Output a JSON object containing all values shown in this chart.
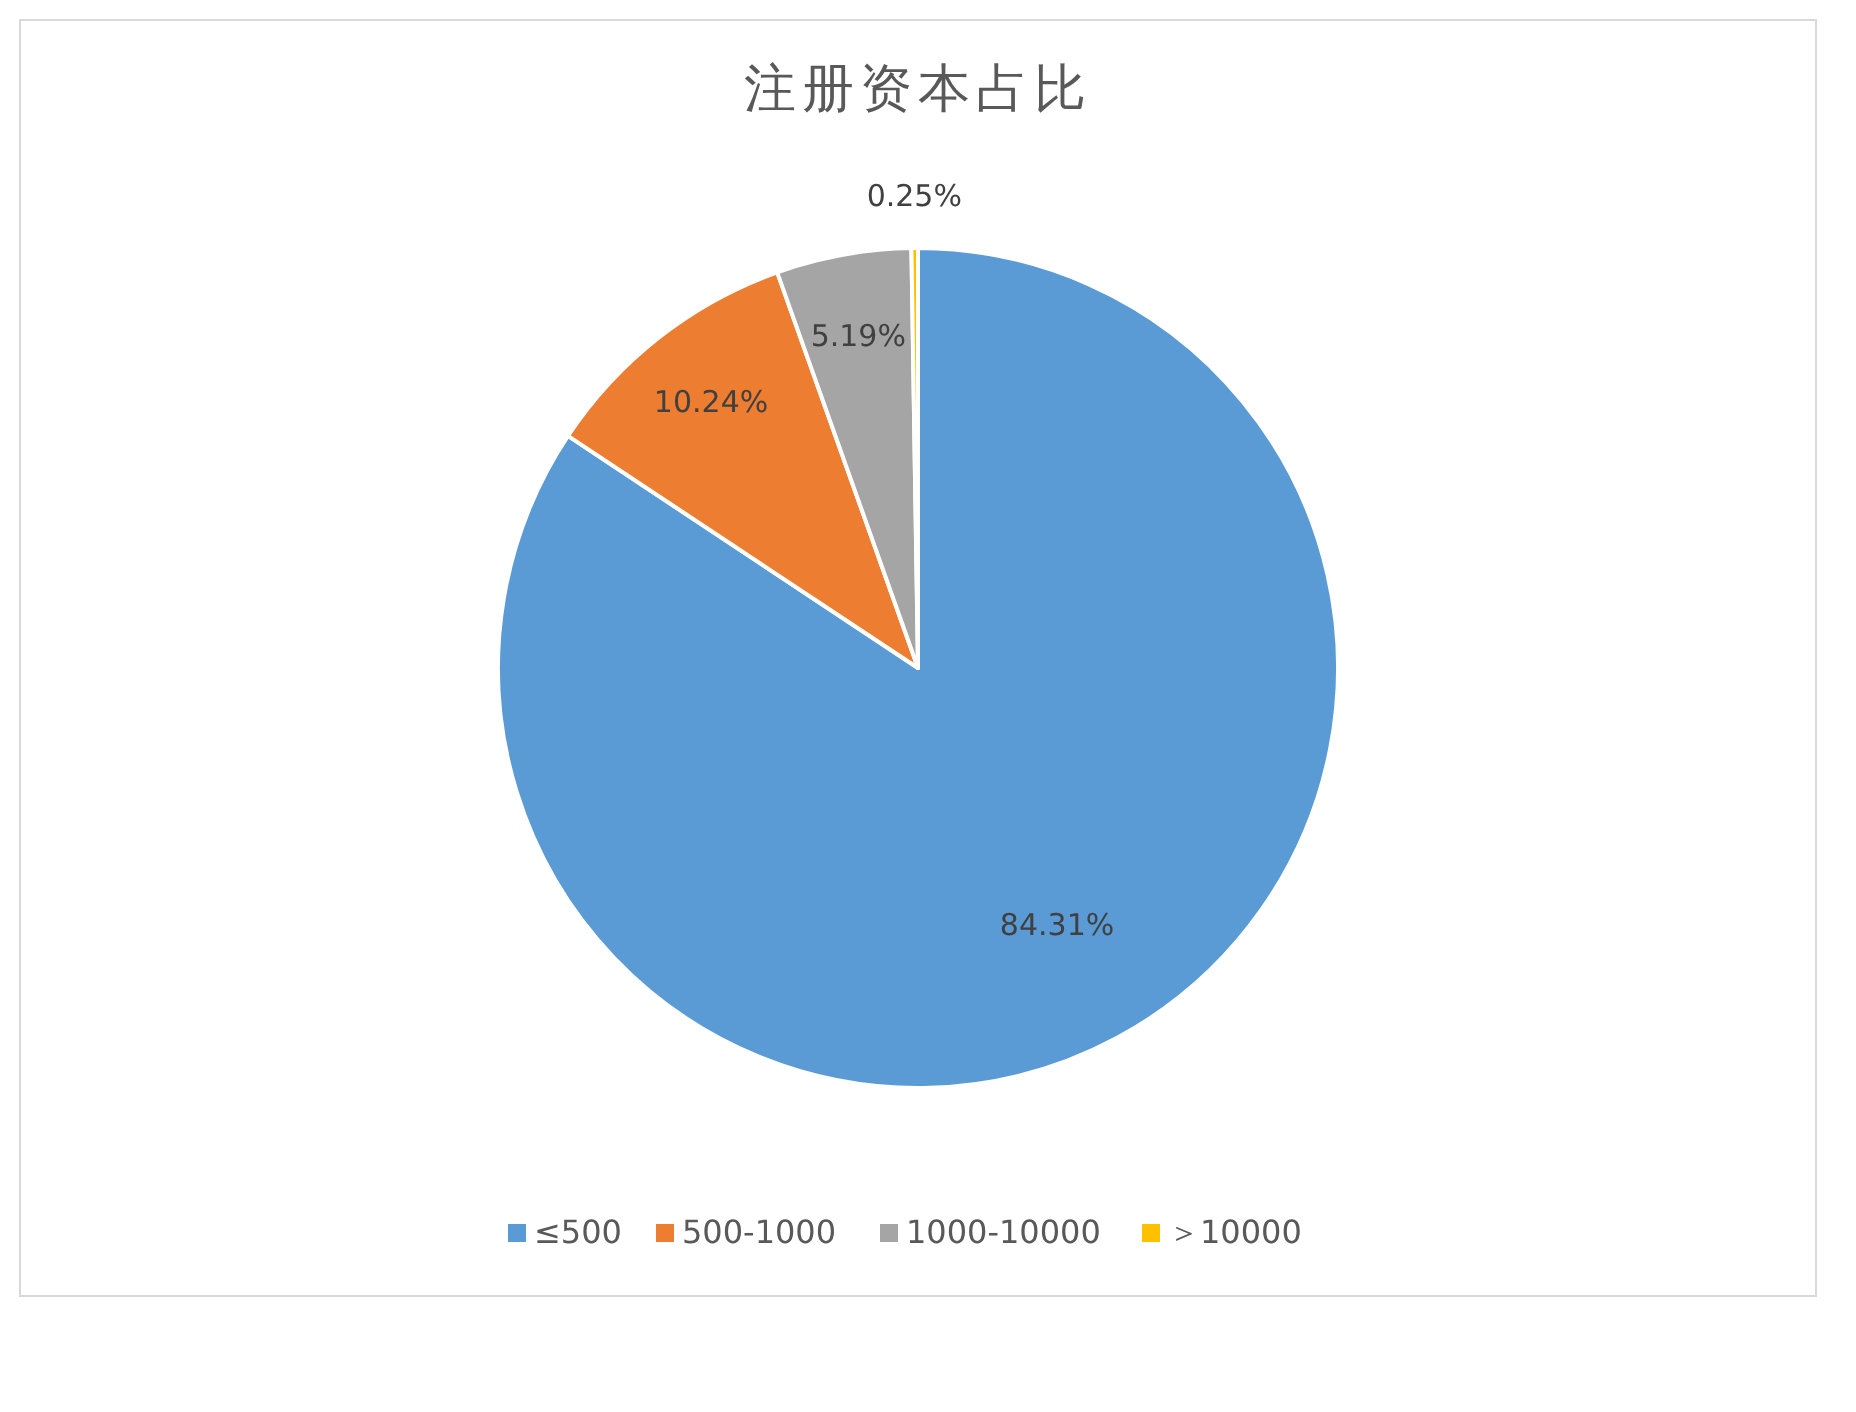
{
  "chart_data": {
    "type": "pie",
    "title": "注册资本占比",
    "categories": [
      "≤500",
      "500-1000",
      "1000-10000",
      "＞10000"
    ],
    "values": [
      84.31,
      10.24,
      5.19,
      0.25
    ],
    "colors": [
      "#5b9bd5",
      "#ed7d31",
      "#a5a5a5",
      "#ffc000"
    ],
    "value_labels": [
      "84.31%",
      "10.24%",
      "5.19%",
      "0.25%"
    ],
    "legend": "bottom"
  }
}
